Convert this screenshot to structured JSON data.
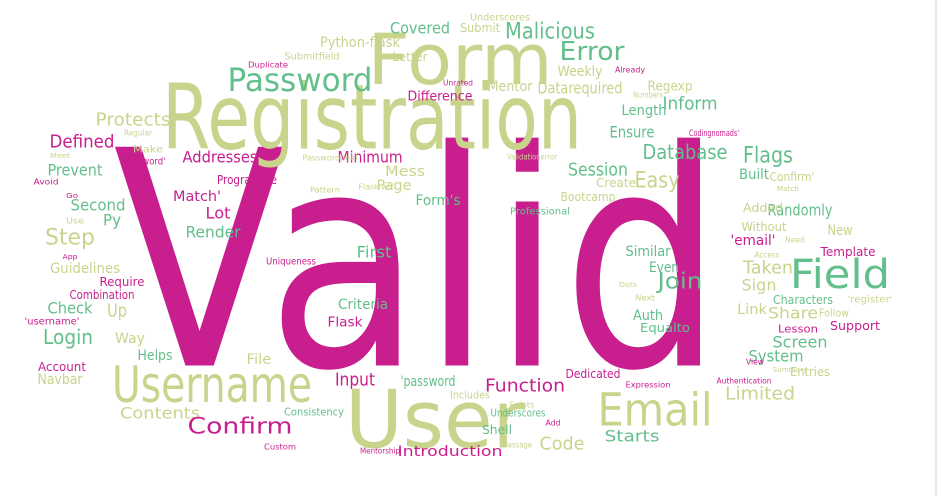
{
  "word_cloud": {
    "words": [
      {
        "text": "Valid",
        "color": "#c81e8e"
      },
      {
        "text": "Registration",
        "color": "#c8d48c"
      },
      {
        "text": "Form",
        "color": "#c8d48c"
      },
      {
        "text": "User",
        "color": "#c8d48c"
      },
      {
        "text": "Username",
        "color": "#c8d48c"
      },
      {
        "text": "Password",
        "color": "#62bf8b"
      },
      {
        "text": "Email",
        "color": "#c8d48c"
      },
      {
        "text": "Field",
        "color": "#62bf8b"
      },
      {
        "text": "Error",
        "color": "#62bf8b"
      },
      {
        "text": "Malicious",
        "color": "#62bf8b"
      },
      {
        "text": "Covered",
        "color": "#62bf8b"
      },
      {
        "text": "Submit",
        "color": "#c8d48c"
      },
      {
        "text": "Underscores",
        "color": "#c8d48c"
      },
      {
        "text": "Python-flask",
        "color": "#c8d48c"
      },
      {
        "text": "Letter",
        "color": "#c8d48c"
      },
      {
        "text": "Submitfield",
        "color": "#c8d48c"
      },
      {
        "text": "Duplicate",
        "color": "#c81e8e"
      },
      {
        "text": "Weekly",
        "color": "#c8d48c"
      },
      {
        "text": "Mentor",
        "color": "#c8d48c"
      },
      {
        "text": "Regexp",
        "color": "#c8d48c"
      },
      {
        "text": "Datarequired",
        "color": "#c8d48c"
      },
      {
        "text": "Already",
        "color": "#c81e8e"
      },
      {
        "text": "Difference",
        "color": "#c81e8e"
      },
      {
        "text": "Unrated",
        "color": "#c81e8e"
      },
      {
        "text": "Inform",
        "color": "#62bf8b"
      },
      {
        "text": "Length",
        "color": "#62bf8b"
      },
      {
        "text": "Numbers",
        "color": "#c8d48c"
      },
      {
        "text": "Protects",
        "color": "#c8d48c"
      },
      {
        "text": "Defined",
        "color": "#c81e8e"
      },
      {
        "text": "Ensure",
        "color": "#62bf8b"
      },
      {
        "text": "Codingnomads'",
        "color": "#c81e8e"
      },
      {
        "text": "Regular",
        "color": "#c8d48c"
      },
      {
        "text": "Database",
        "color": "#62bf8b"
      },
      {
        "text": "Flags",
        "color": "#62bf8b"
      },
      {
        "text": "Easy",
        "color": "#c8d48c"
      },
      {
        "text": "Make",
        "color": "#c8d48c"
      },
      {
        "text": "Addresses",
        "color": "#c81e8e"
      },
      {
        "text": "Minimum",
        "color": "#c81e8e"
      },
      {
        "text": "Prevent",
        "color": "#62bf8b"
      },
      {
        "text": "'password'",
        "color": "#c81e8e"
      },
      {
        "text": "Meet",
        "color": "#c8d48c"
      },
      {
        "text": "Session",
        "color": "#62bf8b"
      },
      {
        "text": "Passwordfield",
        "color": "#c8d48c"
      },
      {
        "text": "Validationerror",
        "color": "#c8d48c"
      },
      {
        "text": "Mess",
        "color": "#c8d48c"
      },
      {
        "text": "Page",
        "color": "#c8d48c"
      },
      {
        "text": "Create",
        "color": "#c8d48c"
      },
      {
        "text": "Built",
        "color": "#62bf8b"
      },
      {
        "text": "Confirm'",
        "color": "#c8d48c"
      },
      {
        "text": "Programme",
        "color": "#c81e8e"
      },
      {
        "text": "Avoid",
        "color": "#c81e8e"
      },
      {
        "text": "Go",
        "color": "#c81e8e"
      },
      {
        "text": "Bootcamp",
        "color": "#c8d48c"
      },
      {
        "text": "Match'",
        "color": "#c81e8e"
      },
      {
        "text": "Second",
        "color": "#62bf8b"
      },
      {
        "text": "Randomly",
        "color": "#62bf8b"
      },
      {
        "text": "Added",
        "color": "#c8d48c"
      },
      {
        "text": "Professional",
        "color": "#62bf8b"
      },
      {
        "text": "Form's",
        "color": "#62bf8b"
      },
      {
        "text": "Lot",
        "color": "#c81e8e"
      },
      {
        "text": "Py",
        "color": "#62bf8b"
      },
      {
        "text": "Use",
        "color": "#c8d48c"
      },
      {
        "text": "Without",
        "color": "#c8d48c"
      },
      {
        "text": "Step",
        "color": "#c8d48c"
      },
      {
        "text": "Render",
        "color": "#62bf8b"
      },
      {
        "text": "New",
        "color": "#c8d48c"
      },
      {
        "text": "Need",
        "color": "#c8d48c"
      },
      {
        "text": "'email'",
        "color": "#c81e8e"
      },
      {
        "text": "First",
        "color": "#62bf8b"
      },
      {
        "text": "Similar",
        "color": "#62bf8b"
      },
      {
        "text": "Template",
        "color": "#c81e8e"
      },
      {
        "text": "Guidelines",
        "color": "#c8d48c"
      },
      {
        "text": "Uniqueness",
        "color": "#c81e8e"
      },
      {
        "text": "Even",
        "color": "#62bf8b"
      },
      {
        "text": "Taken",
        "color": "#c8d48c"
      },
      {
        "text": "Join",
        "color": "#62bf8b"
      },
      {
        "text": "Require",
        "color": "#c81e8e"
      },
      {
        "text": "Sign",
        "color": "#c8d48c"
      },
      {
        "text": "Combination",
        "color": "#c81e8e"
      },
      {
        "text": "Characters",
        "color": "#62bf8b"
      },
      {
        "text": "'register'",
        "color": "#c8d48c"
      },
      {
        "text": "Criteria",
        "color": "#62bf8b"
      },
      {
        "text": "Check",
        "color": "#62bf8b"
      },
      {
        "text": "Up",
        "color": "#c8d48c"
      },
      {
        "text": "Share",
        "color": "#c8d48c"
      },
      {
        "text": "Flask",
        "color": "#c81e8e"
      },
      {
        "text": "Auth",
        "color": "#62bf8b"
      },
      {
        "text": "Link",
        "color": "#c8d48c"
      },
      {
        "text": "'username'",
        "color": "#c81e8e"
      },
      {
        "text": "Equalto",
        "color": "#62bf8b"
      },
      {
        "text": "Lesson",
        "color": "#c81e8e"
      },
      {
        "text": "Support",
        "color": "#c81e8e"
      },
      {
        "text": "Login",
        "color": "#62bf8b"
      },
      {
        "text": "Way",
        "color": "#c8d48c"
      },
      {
        "text": "Screen",
        "color": "#62bf8b"
      },
      {
        "text": "Helps",
        "color": "#62bf8b"
      },
      {
        "text": "System",
        "color": "#62bf8b"
      },
      {
        "text": "File",
        "color": "#c8d48c"
      },
      {
        "text": "Account",
        "color": "#c81e8e"
      },
      {
        "text": "Entries",
        "color": "#c8d48c"
      },
      {
        "text": "Navbar",
        "color": "#c8d48c"
      },
      {
        "text": "Input",
        "color": "#c81e8e"
      },
      {
        "text": "'password",
        "color": "#62bf8b"
      },
      {
        "text": "Dedicated",
        "color": "#c81e8e"
      },
      {
        "text": "Function",
        "color": "#c81e8e"
      },
      {
        "text": "Limited",
        "color": "#c8d48c"
      },
      {
        "text": "Contents",
        "color": "#c8d48c"
      },
      {
        "text": "Includes",
        "color": "#c8d48c"
      },
      {
        "text": "Underscores",
        "color": "#62bf8b"
      },
      {
        "text": "Confirm",
        "color": "#c81e8e"
      },
      {
        "text": "Consistency",
        "color": "#62bf8b"
      },
      {
        "text": "Code",
        "color": "#c8d48c"
      },
      {
        "text": "Starts",
        "color": "#62bf8b"
      },
      {
        "text": "Shell",
        "color": "#62bf8b"
      },
      {
        "text": "Introduction",
        "color": "#c81e8e"
      },
      {
        "text": "Custom",
        "color": "#c81e8e"
      },
      {
        "text": "Mentorship",
        "color": "#c81e8e"
      },
      {
        "text": "Message",
        "color": "#c8d48c"
      },
      {
        "text": "Expression",
        "color": "#c81e8e"
      },
      {
        "text": "Authentication",
        "color": "#c81e8e"
      },
      {
        "text": "View",
        "color": "#c81e8e"
      },
      {
        "text": "Next",
        "color": "#c8d48c"
      },
      {
        "text": "Dots",
        "color": "#c8d48c"
      },
      {
        "text": "Access",
        "color": "#c8d48c"
      },
      {
        "text": "Match",
        "color": "#c8d48c"
      },
      {
        "text": "App",
        "color": "#c81e8e"
      },
      {
        "text": "Summary",
        "color": "#c8d48c"
      },
      {
        "text": "Follow",
        "color": "#c8d48c"
      },
      {
        "text": "Pattern",
        "color": "#c8d48c"
      },
      {
        "text": "Flask-wtf",
        "color": "#c8d48c"
      },
      {
        "text": "Exists",
        "color": "#c8d48c"
      },
      {
        "text": "Add",
        "color": "#c81e8e"
      }
    ]
  }
}
